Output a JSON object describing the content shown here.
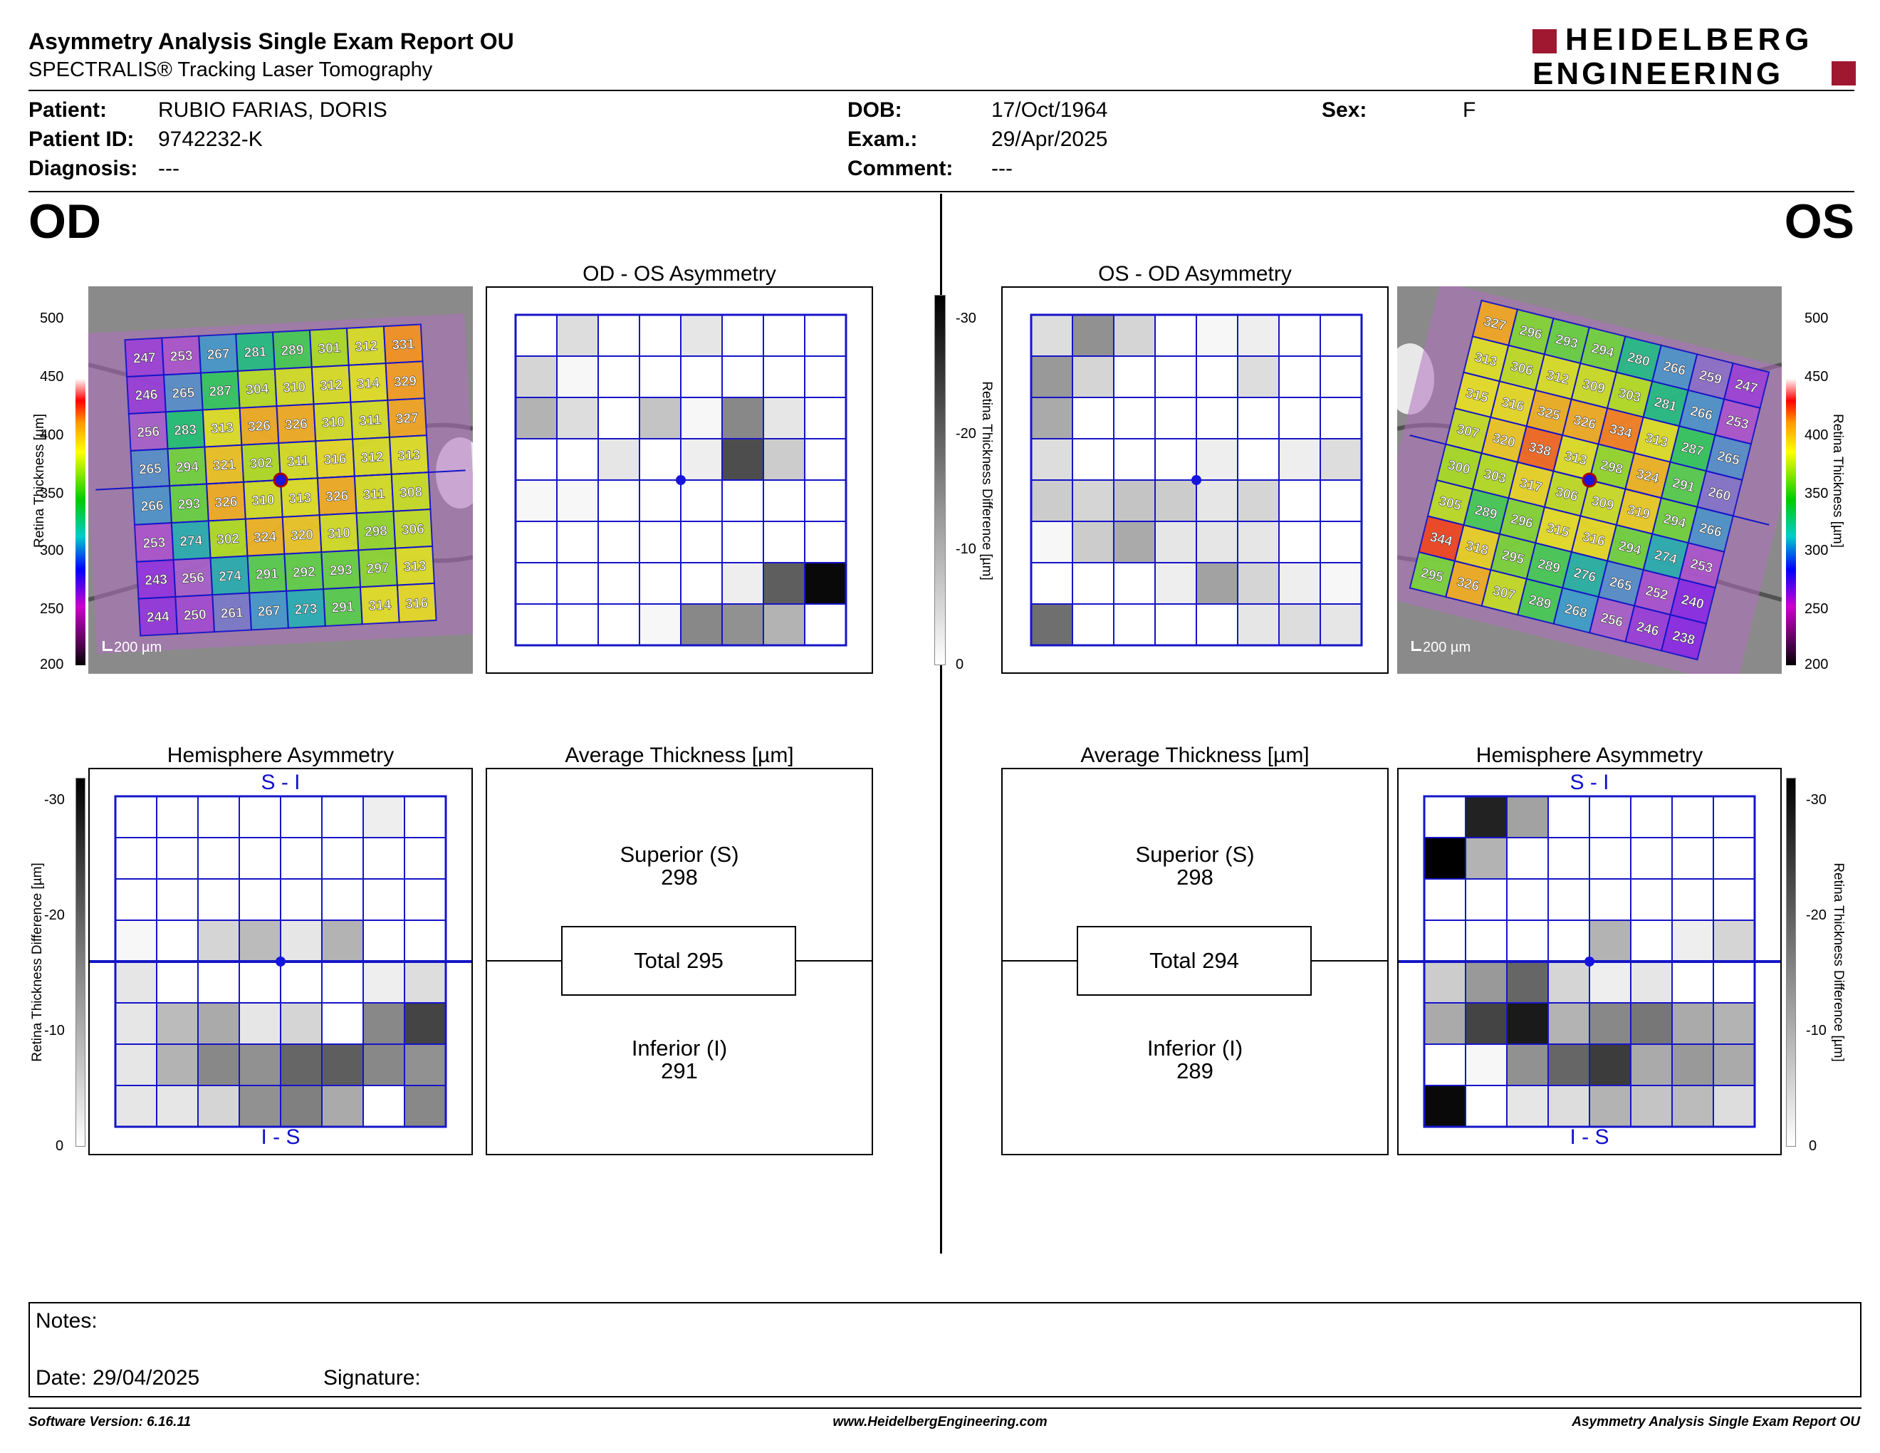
{
  "header": {
    "title": "Asymmetry Analysis Single Exam Report OU",
    "subtitle": "SPECTRALIS® Tracking Laser Tomography",
    "logo_line1": "HEIDELBERG",
    "logo_line2": "ENGINEERING",
    "logo_color": "#a01830"
  },
  "patient": {
    "patient_label": "Patient:",
    "patient_value": "RUBIO FARIAS, DORIS",
    "id_label": "Patient ID:",
    "id_value": "9742232-K",
    "diagnosis_label": "Diagnosis:",
    "diagnosis_value": "---",
    "dob_label": "DOB:",
    "dob_value": "17/Oct/1964",
    "exam_label": "Exam.:",
    "exam_value": "29/Apr/2025",
    "comment_label": "Comment:",
    "comment_value": "---",
    "sex_label": "Sex:",
    "sex_value": "F"
  },
  "od": {
    "eye_label": "OD",
    "asym_title": "OD - OS Asymmetry",
    "hemi_title": "Hemisphere Asymmetry",
    "hemi_top": "S - I",
    "hemi_bottom": "I - S",
    "avg_title": "Average Thickness [µm]",
    "sup_label": "Superior (S)",
    "sup_value": "298",
    "total_label": "Total 295",
    "inf_label": "Inferior (I)",
    "inf_value": "291",
    "scale_label": "200 µm",
    "thickness_grid": [
      [
        247,
        253,
        267,
        281,
        289,
        301,
        312,
        331
      ],
      [
        246,
        265,
        287,
        304,
        310,
        312,
        314,
        329
      ],
      [
        256,
        283,
        313,
        326,
        326,
        310,
        311,
        327
      ],
      [
        265,
        294,
        321,
        302,
        311,
        316,
        312,
        313
      ],
      [
        266,
        293,
        326,
        310,
        313,
        326,
        311,
        308
      ],
      [
        253,
        274,
        302,
        324,
        320,
        310,
        298,
        306
      ],
      [
        243,
        256,
        274,
        291,
        292,
        293,
        297,
        313
      ],
      [
        244,
        250,
        261,
        267,
        273,
        291,
        314,
        316
      ]
    ],
    "asym_grid": [
      [
        0,
        4,
        0,
        0,
        3,
        0,
        0,
        0
      ],
      [
        5,
        1,
        0,
        0,
        0,
        0,
        0,
        0
      ],
      [
        9,
        4,
        0,
        7,
        1,
        14,
        3,
        0
      ],
      [
        0,
        0,
        3,
        0,
        2,
        21,
        6,
        0
      ],
      [
        1,
        1,
        0,
        0,
        0,
        0,
        0,
        0
      ],
      [
        0,
        0,
        0,
        0,
        0,
        0,
        0,
        0
      ],
      [
        0,
        0,
        0,
        0,
        0,
        2,
        19,
        29
      ],
      [
        0,
        0,
        0,
        1,
        14,
        13,
        9,
        0
      ]
    ],
    "hemi_grid": [
      [
        0,
        0,
        0,
        0,
        0,
        0,
        2,
        0
      ],
      [
        0,
        0,
        0,
        0,
        0,
        0,
        0,
        0
      ],
      [
        0,
        0,
        0,
        0,
        0,
        0,
        0,
        0
      ],
      [
        1,
        0,
        5,
        8,
        3,
        9,
        0,
        0
      ],
      [
        3,
        0,
        0,
        0,
        0,
        0,
        2,
        4
      ],
      [
        3,
        8,
        10,
        3,
        5,
        0,
        14,
        22
      ],
      [
        3,
        9,
        14,
        13,
        18,
        19,
        14,
        13
      ],
      [
        3,
        3,
        5,
        13,
        15,
        10,
        0,
        14
      ]
    ]
  },
  "os": {
    "eye_label": "OS",
    "asym_title": "OS - OD Asymmetry",
    "hemi_title": "Hemisphere Asymmetry",
    "hemi_top": "S - I",
    "hemi_bottom": "I - S",
    "avg_title": "Average Thickness [µm]",
    "sup_label": "Superior (S)",
    "sup_value": "298",
    "total_label": "Total 294",
    "inf_label": "Inferior (I)",
    "inf_value": "289",
    "scale_label": "200 µm",
    "thickness_grid": [
      [
        327,
        296,
        293,
        294,
        280,
        266,
        259,
        247
      ],
      [
        313,
        306,
        312,
        309,
        303,
        281,
        266,
        253
      ],
      [
        315,
        316,
        325,
        326,
        334,
        313,
        287,
        265
      ],
      [
        307,
        320,
        338,
        313,
        298,
        324,
        291,
        260
      ],
      [
        300,
        303,
        317,
        306,
        309,
        319,
        294,
        266
      ],
      [
        305,
        289,
        296,
        315,
        316,
        294,
        274,
        253
      ],
      [
        344,
        318,
        295,
        289,
        276,
        265,
        252,
        240
      ],
      [
        295,
        326,
        307,
        289,
        268,
        256,
        246,
        238
      ]
    ],
    "asym_grid": [
      [
        4,
        13,
        5,
        0,
        1,
        2,
        0,
        0
      ],
      [
        12,
        5,
        0,
        0,
        0,
        4,
        0,
        0
      ],
      [
        10,
        0,
        0,
        0,
        0,
        0,
        0,
        0
      ],
      [
        4,
        0,
        0,
        0,
        2,
        0,
        2,
        4
      ],
      [
        6,
        5,
        7,
        6,
        3,
        5,
        0,
        0
      ],
      [
        1,
        6,
        10,
        3,
        3,
        3,
        0,
        0
      ],
      [
        0,
        0,
        0,
        2,
        11,
        5,
        2,
        1
      ],
      [
        17,
        0,
        0,
        0,
        0,
        3,
        4,
        3
      ]
    ],
    "hemi_grid": [
      [
        0,
        26,
        11,
        0,
        0,
        0,
        0,
        0
      ],
      [
        30,
        9,
        0,
        0,
        0,
        0,
        0,
        0
      ],
      [
        0,
        0,
        0,
        0,
        0,
        0,
        0,
        0
      ],
      [
        0,
        0,
        0,
        0,
        9,
        0,
        2,
        5
      ],
      [
        6,
        12,
        18,
        5,
        2,
        3,
        0,
        0
      ],
      [
        10,
        22,
        27,
        9,
        14,
        16,
        10,
        9
      ],
      [
        0,
        1,
        13,
        18,
        23,
        10,
        12,
        10
      ],
      [
        29,
        0,
        3,
        4,
        9,
        7,
        8,
        4
      ]
    ]
  },
  "axes": {
    "thickness_label": "Retina Thickness [µm]",
    "thickness_ticks": [
      "500",
      "450",
      "400",
      "350",
      "300",
      "250",
      "200"
    ],
    "diff_label": "Retina Thickness Difference [µm]",
    "diff_ticks_center": [
      "-30",
      "-20",
      "-10",
      "0"
    ],
    "diff_ticks_hemi": [
      "-30",
      "-20",
      "-10",
      "0"
    ]
  },
  "notes": {
    "notes_label": "Notes:",
    "date_label": "Date: 29/04/2025",
    "signature_label": "Signature:"
  },
  "footer": {
    "software": "Software Version: 6.16.11",
    "website": "www.HeidelbergEngineering.com",
    "report": "Asymmetry Analysis Single Exam Report OU"
  }
}
